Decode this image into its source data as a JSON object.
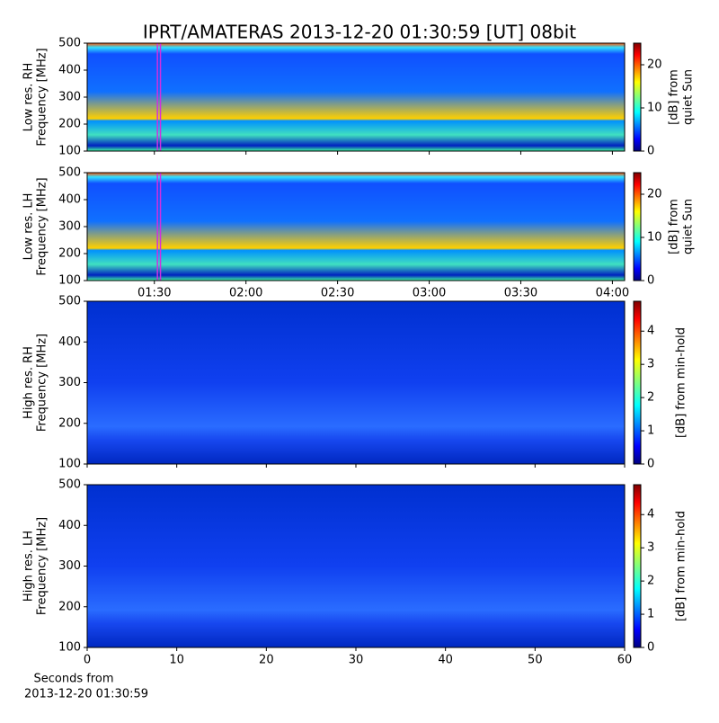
{
  "title": "IPRT/AMATERAS 2013-12-20 01:30:59 [UT]   08bit",
  "chart_data": [
    {
      "type": "spectrogram",
      "ylabel": [
        "Low res. RH",
        "Frequency [MHz]"
      ],
      "xlim": [
        "01:08",
        "04:04"
      ],
      "xticks": [
        "01:30",
        "02:00",
        "02:30",
        "03:00",
        "03:30",
        "04:00"
      ],
      "xticklabels": false,
      "highlight": [
        "01:31",
        "01:32"
      ],
      "highlight_color": "#d030e0",
      "ylim": [
        100,
        500
      ],
      "yticks": [
        100,
        200,
        300,
        400,
        500
      ],
      "colorbar": {
        "label": [
          "[dB] from",
          "quiet Sun"
        ],
        "lim": [
          0,
          25
        ],
        "ticks": [
          0,
          10,
          20
        ]
      }
    },
    {
      "type": "spectrogram",
      "ylabel": [
        "Low res. LH",
        "Frequency [MHz]"
      ],
      "xlim": [
        "01:08",
        "04:04"
      ],
      "xticks": [
        "01:30",
        "02:00",
        "02:30",
        "03:00",
        "03:30",
        "04:00"
      ],
      "xticklabels": true,
      "highlight": [
        "01:31",
        "01:32"
      ],
      "highlight_color": "#d030e0",
      "ylim": [
        100,
        500
      ],
      "yticks": [
        100,
        200,
        300,
        400,
        500
      ],
      "colorbar": {
        "label": [
          "[dB] from",
          "quiet Sun"
        ],
        "lim": [
          0,
          25
        ],
        "ticks": [
          0,
          10,
          20
        ]
      }
    },
    {
      "type": "spectrogram",
      "ylabel": [
        "High res. RH",
        "Frequency [MHz]"
      ],
      "xlim": [
        0,
        60
      ],
      "xticks": [
        0,
        10,
        20,
        30,
        40,
        50,
        60
      ],
      "xticklabels": false,
      "ylim": [
        100,
        500
      ],
      "yticks": [
        100,
        200,
        300,
        400,
        500
      ],
      "colorbar": {
        "label": [
          "[dB] from min-hold"
        ],
        "lim": [
          0,
          4.9
        ],
        "ticks": [
          0,
          1,
          2,
          3,
          4
        ]
      }
    },
    {
      "type": "spectrogram",
      "ylabel": [
        "High res. LH",
        "Frequency [MHz]"
      ],
      "xlim": [
        0,
        60
      ],
      "xticks": [
        0,
        10,
        20,
        30,
        40,
        50,
        60
      ],
      "xticklabels": true,
      "xlabel": [
        "Seconds from",
        "2013-12-20 01:30:59"
      ],
      "ylim": [
        100,
        500
      ],
      "yticks": [
        100,
        200,
        300,
        400,
        500
      ],
      "colorbar": {
        "label": [
          "[dB] from min-hold"
        ],
        "lim": [
          0,
          4.9
        ],
        "ticks": [
          0,
          1,
          2,
          3,
          4
        ]
      }
    }
  ]
}
